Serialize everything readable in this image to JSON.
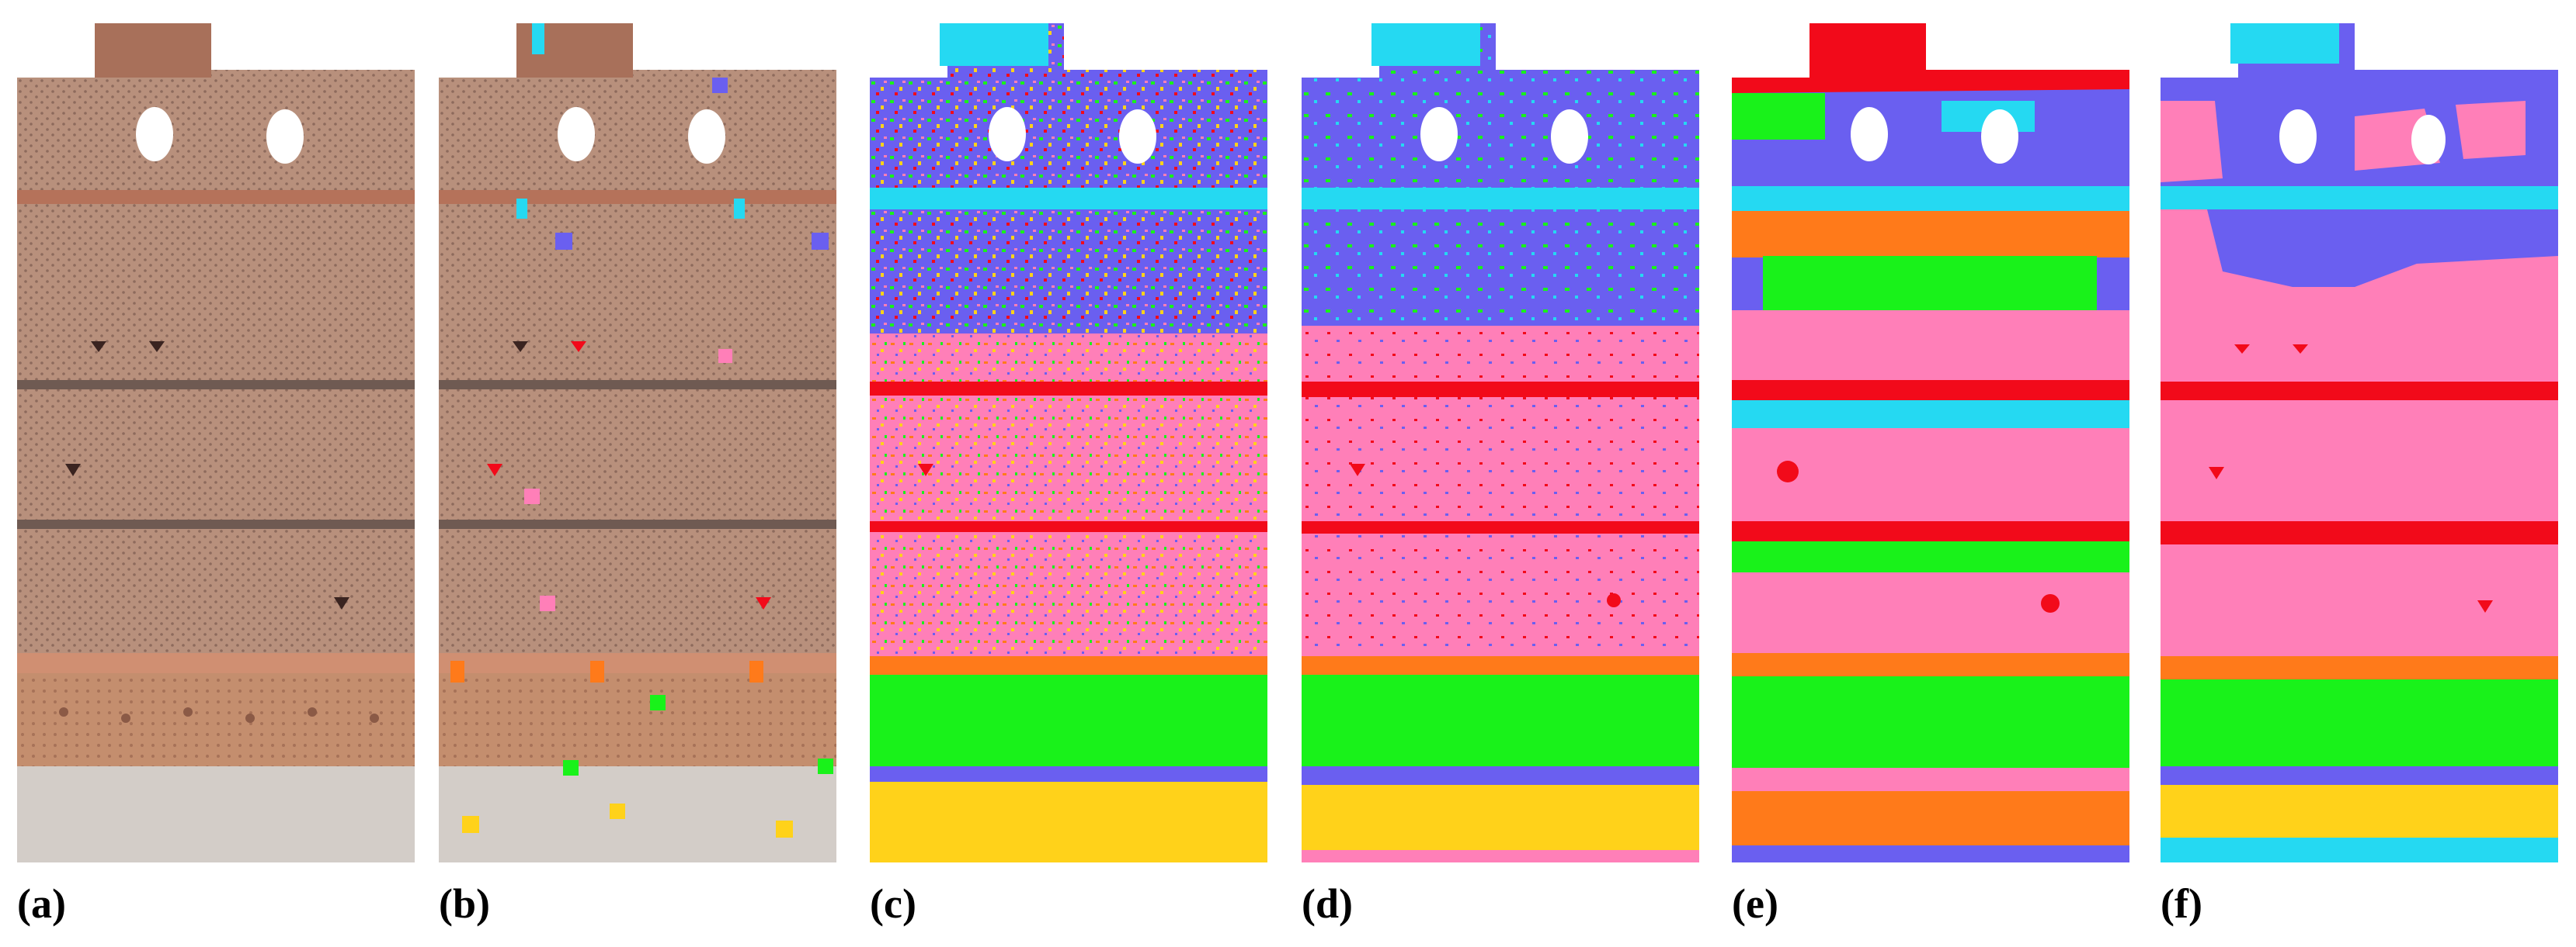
{
  "panels": [
    {
      "id": "a",
      "label": "(a)",
      "kind": "photo"
    },
    {
      "id": "b",
      "label": "(b)",
      "kind": "photo-with-samples"
    },
    {
      "id": "c",
      "label": "(c)",
      "kind": "classification"
    },
    {
      "id": "d",
      "label": "(d)",
      "kind": "classification"
    },
    {
      "id": "e",
      "label": "(e)",
      "kind": "classification"
    },
    {
      "id": "f",
      "label": "(f)",
      "kind": "classification-smooth"
    }
  ],
  "colors": {
    "blue": "#6a5ff0",
    "cyan": "#25d9f2",
    "pink": "#ff7fb8",
    "red": "#f20a1a",
    "orange": "#ff7a1a",
    "green": "#19f21a",
    "yellow": "#ffd21a",
    "brick": "#b88a70",
    "brick_light": "#c8a690",
    "brick_dark": "#8a5c48",
    "stone": "#cfc9c4"
  }
}
